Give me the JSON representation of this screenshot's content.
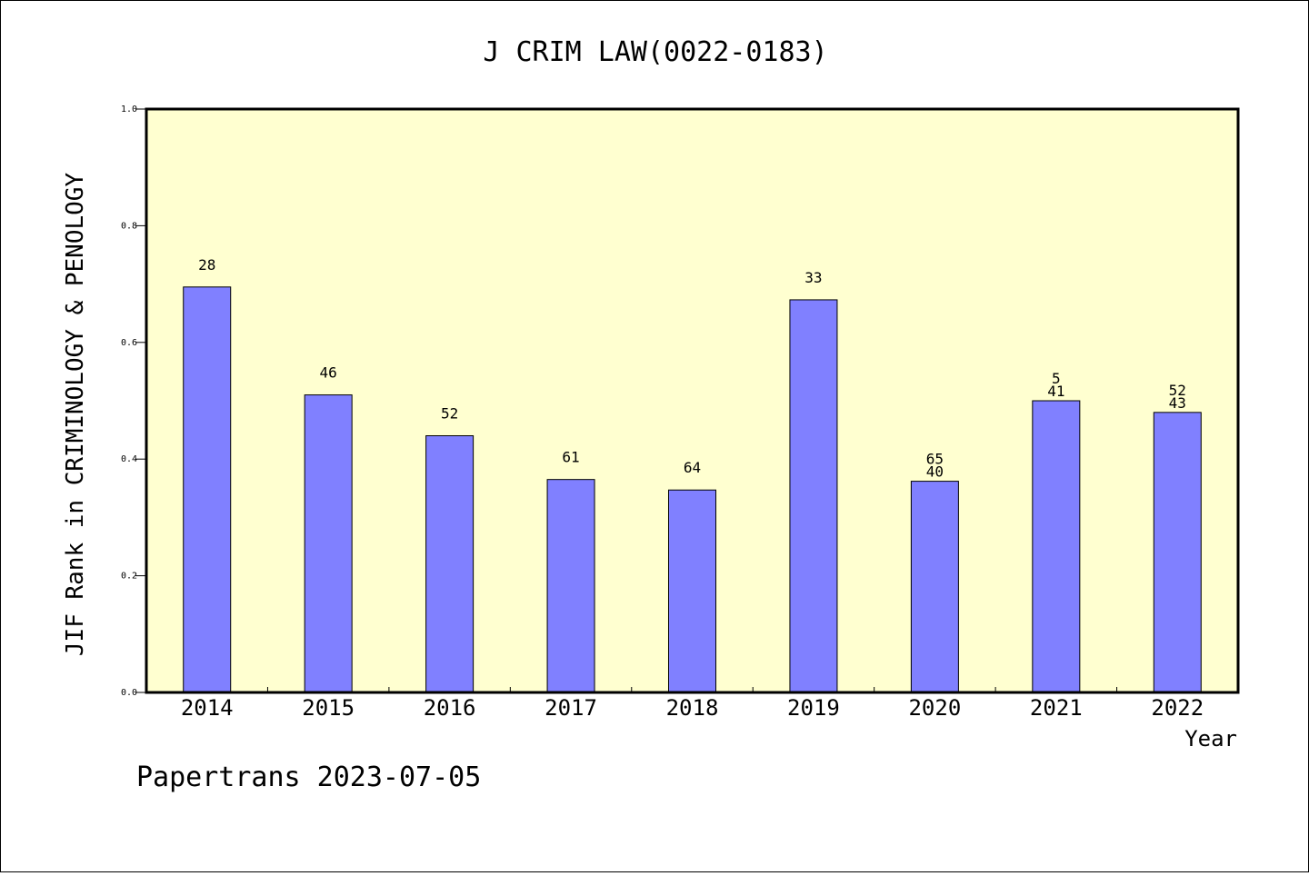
{
  "footer": "Papertrans 2023-07-05",
  "chart_data": {
    "type": "bar",
    "title": "J CRIM LAW(0022-0183)",
    "xlabel": "Year",
    "ylabel": "JIF Rank in CRIMINOLOGY & PENOLOGY",
    "ylim": [
      0,
      1.0
    ],
    "yticks": [
      "0.0",
      "0.2",
      "0.4",
      "0.6",
      "0.8",
      "1.0"
    ],
    "categories": [
      "2014",
      "2015",
      "2016",
      "2017",
      "2018",
      "2019",
      "2020",
      "2021",
      "2022"
    ],
    "values": [
      0.695,
      0.51,
      0.44,
      0.365,
      0.347,
      0.673,
      0.362,
      0.5,
      0.48
    ],
    "labels_top": [
      "",
      "",
      "",
      "",
      "",
      "",
      "65",
      "5",
      "52"
    ],
    "labels": [
      "28",
      "46",
      "52",
      "61",
      "64",
      "33",
      "40",
      "41",
      "43"
    ],
    "grid": false,
    "colors": {
      "bar": "#8080ff",
      "plot_bg": "#ffffd0",
      "bar_stroke": "#000000"
    }
  }
}
